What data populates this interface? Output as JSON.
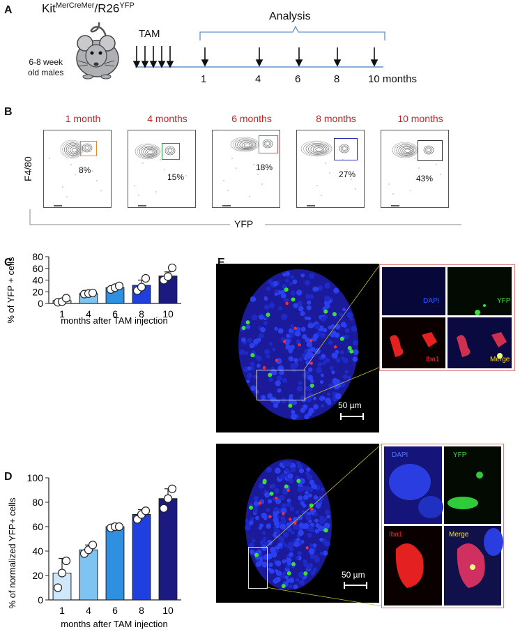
{
  "panelA": {
    "letter": "A",
    "mouse_title_main": "Kit",
    "mouse_title_sup1": "MerCreMer",
    "mouse_title_mid": "/R26",
    "mouse_title_sup2": "YFP",
    "mouse_desc_line1": "6-8 week",
    "mouse_desc_line2": "old males",
    "tam_label": "TAM",
    "analysis_label": "Analysis",
    "timepoints": [
      "1",
      "4",
      "6",
      "8",
      "10 months"
    ]
  },
  "panelB": {
    "letter": "B",
    "ylabel": "F4/80",
    "xlabel": "YFP",
    "plots": [
      {
        "title": "1 month",
        "percent": "8%",
        "gate_color": "#e08a2a"
      },
      {
        "title": "4 months",
        "percent": "15%",
        "gate_color": "#2e8b3a"
      },
      {
        "title": "6 months",
        "percent": "18%",
        "gate_color": "#e05a5a"
      },
      {
        "title": "8 months",
        "percent": "27%",
        "gate_color": "#2a2ab0"
      },
      {
        "title": "10 months",
        "percent": "43%",
        "gate_color": "#333333"
      }
    ]
  },
  "chart_data": [
    {
      "type": "bar",
      "panel": "C",
      "categories": [
        "1",
        "4",
        "6",
        "8",
        "10"
      ],
      "values": [
        5,
        17,
        27,
        31,
        47
      ],
      "errors": [
        3,
        1,
        3,
        9,
        7
      ],
      "points": [
        [
          2,
          3,
          9
        ],
        [
          16,
          17,
          18
        ],
        [
          24,
          27,
          30
        ],
        [
          22,
          28,
          43
        ],
        [
          40,
          46,
          61
        ]
      ],
      "colors": [
        "#cfe7fb",
        "#7ec4f2",
        "#2f8fe0",
        "#1f3fe0",
        "#1a1a80"
      ],
      "ylabel": "% of YFP + cells",
      "xlabel": "months after TAM injection",
      "ylim": [
        0,
        80
      ],
      "yticks": [
        0,
        20,
        40,
        60,
        80
      ]
    },
    {
      "type": "bar",
      "panel": "D",
      "categories": [
        "1",
        "4",
        "6",
        "8",
        "10"
      ],
      "values": [
        22,
        41,
        60,
        70,
        83
      ],
      "errors": [
        12,
        4,
        1,
        4,
        8
      ],
      "points": [
        [
          10,
          22,
          32
        ],
        [
          38,
          41,
          45
        ],
        [
          59,
          60,
          60
        ],
        [
          66,
          70,
          73
        ],
        [
          75,
          83,
          91
        ]
      ],
      "colors": [
        "#cfe7fb",
        "#7ec4f2",
        "#2f8fe0",
        "#1f3fe0",
        "#1a1a80"
      ],
      "ylabel": "% of normalized YFP+ cells",
      "xlabel": "months after TAM injection",
      "ylim": [
        0,
        100
      ],
      "yticks": [
        0,
        20,
        40,
        60,
        80,
        100
      ]
    }
  ],
  "labels": {
    "panelC_letter": "C",
    "panelD_letter": "D",
    "panelE_letter": "E"
  },
  "panelE": {
    "scale_bar_top": "50 µm",
    "scale_bar_bottom": "50 µm",
    "channels": [
      "DAPI",
      "YFP",
      "Iba1",
      "Merge"
    ],
    "channel_colors": [
      "#2a5bff",
      "#3ddc3d",
      "#ff2a2a",
      "#ffe000"
    ]
  }
}
